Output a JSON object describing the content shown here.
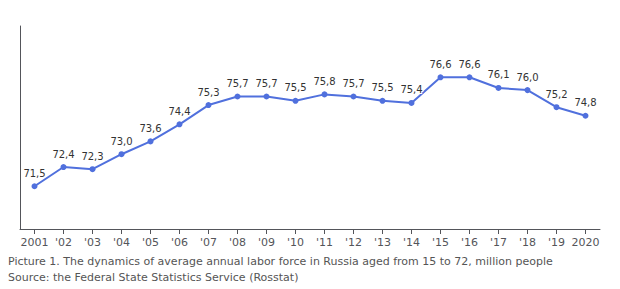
{
  "chart_data": {
    "type": "line",
    "categories": [
      "2001",
      "'02",
      "'03",
      "'04",
      "'05",
      "'06",
      "'07",
      "'08",
      "'09",
      "'10",
      "'11",
      "'12",
      "'13",
      "'14",
      "'15",
      "'16",
      "'17",
      "'18",
      "'19",
      "2020"
    ],
    "values": [
      71.5,
      72.4,
      72.3,
      73.0,
      73.6,
      74.4,
      75.3,
      75.7,
      75.7,
      75.5,
      75.8,
      75.7,
      75.5,
      75.4,
      76.6,
      76.6,
      76.1,
      76.0,
      75.2,
      74.8
    ],
    "value_labels": [
      "71,5",
      "72,4",
      "72,3",
      "73,0",
      "73,6",
      "74,4",
      "75,3",
      "75,7",
      "75,7",
      "75,5",
      "75,8",
      "75,7",
      "75,5",
      "75,4",
      "76,6",
      "76,6",
      "76,1",
      "76,0",
      "75,2",
      "74,8"
    ],
    "data_labels": true,
    "marker": "circle",
    "ylim": [
      69.5,
      79.0
    ],
    "tick_labels": "x",
    "grid": false,
    "annotations": [
      "Picture 1. The dynamics of average annual labor force in Russia aged from 15 to 72, million people",
      "Source: the Federal State Statistics Service (Rosstat)"
    ]
  }
}
